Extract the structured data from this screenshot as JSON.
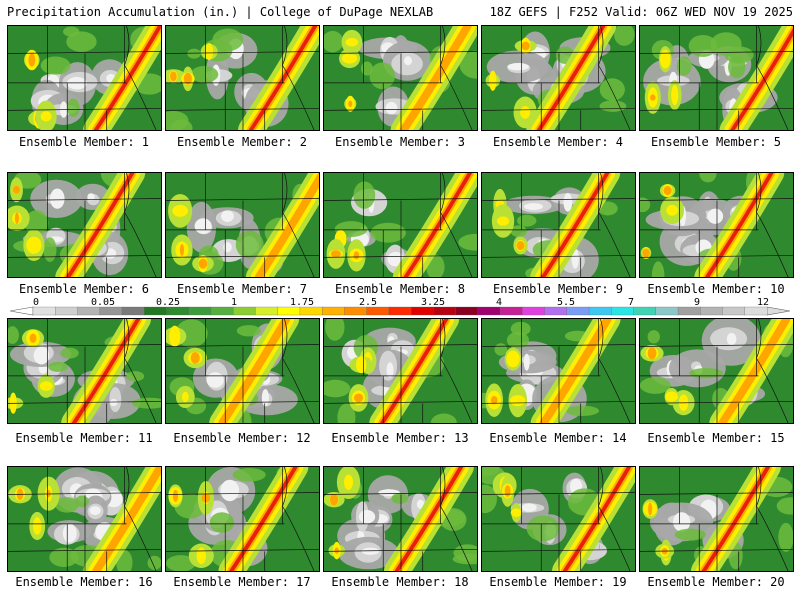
{
  "header": {
    "left": "Precipitation Accumulation (in.) | College of DuPage NEXLAB",
    "right": "18Z GEFS | F252 Valid: 06Z WED NOV 19 2025"
  },
  "colorbar": {
    "tick_labels": [
      "0",
      "0.05",
      "0.25",
      "1",
      "1.75",
      "2.5",
      "3.25",
      "4",
      "5.5",
      "7",
      "9",
      "12"
    ],
    "colors": [
      "#e0e0e0",
      "#cfcfcf",
      "#b4b4b4",
      "#969696",
      "#7a7a7a",
      "#237823",
      "#2e8b2e",
      "#3c9c3c",
      "#55b040",
      "#8ccd32",
      "#d7ef2a",
      "#ffff00",
      "#ffd700",
      "#ffb000",
      "#ff8c00",
      "#ff5a00",
      "#ff2a00",
      "#e00000",
      "#b80010",
      "#8b0020",
      "#a00070",
      "#c81e96",
      "#e040e0",
      "#b070f0",
      "#7a9cf5",
      "#3cc8f0",
      "#28e6e6",
      "#40d2b4",
      "#8cc8c8",
      "#a0a0a0",
      "#b4b4b4",
      "#c8c8c8",
      "#dcdcdc"
    ]
  },
  "members": [
    {
      "label": "Ensemble Member: 1"
    },
    {
      "label": "Ensemble Member: 2"
    },
    {
      "label": "Ensemble Member: 3"
    },
    {
      "label": "Ensemble Member: 4"
    },
    {
      "label": "Ensemble Member: 5"
    },
    {
      "label": "Ensemble Member: 6"
    },
    {
      "label": "Ensemble Member: 7"
    },
    {
      "label": "Ensemble Member: 8"
    },
    {
      "label": "Ensemble Member: 9"
    },
    {
      "label": "Ensemble Member: 10"
    },
    {
      "label": "Ensemble Member: 11"
    },
    {
      "label": "Ensemble Member: 12"
    },
    {
      "label": "Ensemble Member: 13"
    },
    {
      "label": "Ensemble Member: 14"
    },
    {
      "label": "Ensemble Member: 15"
    },
    {
      "label": "Ensemble Member: 16"
    },
    {
      "label": "Ensemble Member: 17"
    },
    {
      "label": "Ensemble Member: 18"
    },
    {
      "label": "Ensemble Member: 19"
    },
    {
      "label": "Ensemble Member: 20"
    }
  ],
  "map_colors": {
    "dry": "#f2f2f2",
    "light_gray": "#d4d4d4",
    "gray": "#a8a8a8",
    "green": "#2f8a2f",
    "light_green": "#6cbb3c",
    "yellow_green": "#b8e035",
    "yellow": "#ffee00",
    "orange": "#ffa500",
    "red": "#e8200a",
    "dark_red": "#a8001e"
  }
}
